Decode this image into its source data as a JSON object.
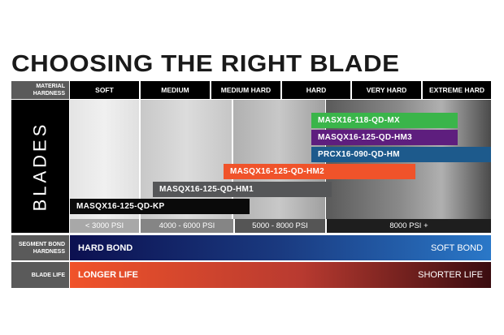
{
  "title": "CHOOSING THE RIGHT BLADE",
  "material_hardness": {
    "label": "MATERIAL HARDNESS",
    "columns": [
      "SOFT",
      "MEDIUM",
      "MEDIUM HARD",
      "HARD",
      "VERY HARD",
      "EXTREME HARD"
    ]
  },
  "blades": {
    "label": "BLADES",
    "items": [
      {
        "name": "MASX16-118-QD-MX",
        "color": "#3ab54a"
      },
      {
        "name": "MASQX16-125-QD-HM3",
        "color": "#5e1e7e"
      },
      {
        "name": "PRCX16-090-QD-HM",
        "color": "#1d5a8c"
      },
      {
        "name": "MASQX16-125-QD-HM2",
        "color": "#f0532a"
      },
      {
        "name": "MASQX16-125-QD-HM1",
        "color": "#555658"
      },
      {
        "name": "MASQX16-125-QD-KP",
        "color": "#0a0a0a"
      }
    ]
  },
  "psi": [
    "< 3000 PSI",
    "4000 - 6000 PSI",
    "5000 - 8000 PSI",
    "8000 PSI +"
  ],
  "segment_bond": {
    "label": "SEGMENT BOND HARDNESS",
    "left": "HARD BOND",
    "right": "SOFT BOND"
  },
  "blade_life": {
    "label": "BLADE LIFE",
    "left": "LONGER LIFE",
    "right": "SHORTER LIFE"
  }
}
